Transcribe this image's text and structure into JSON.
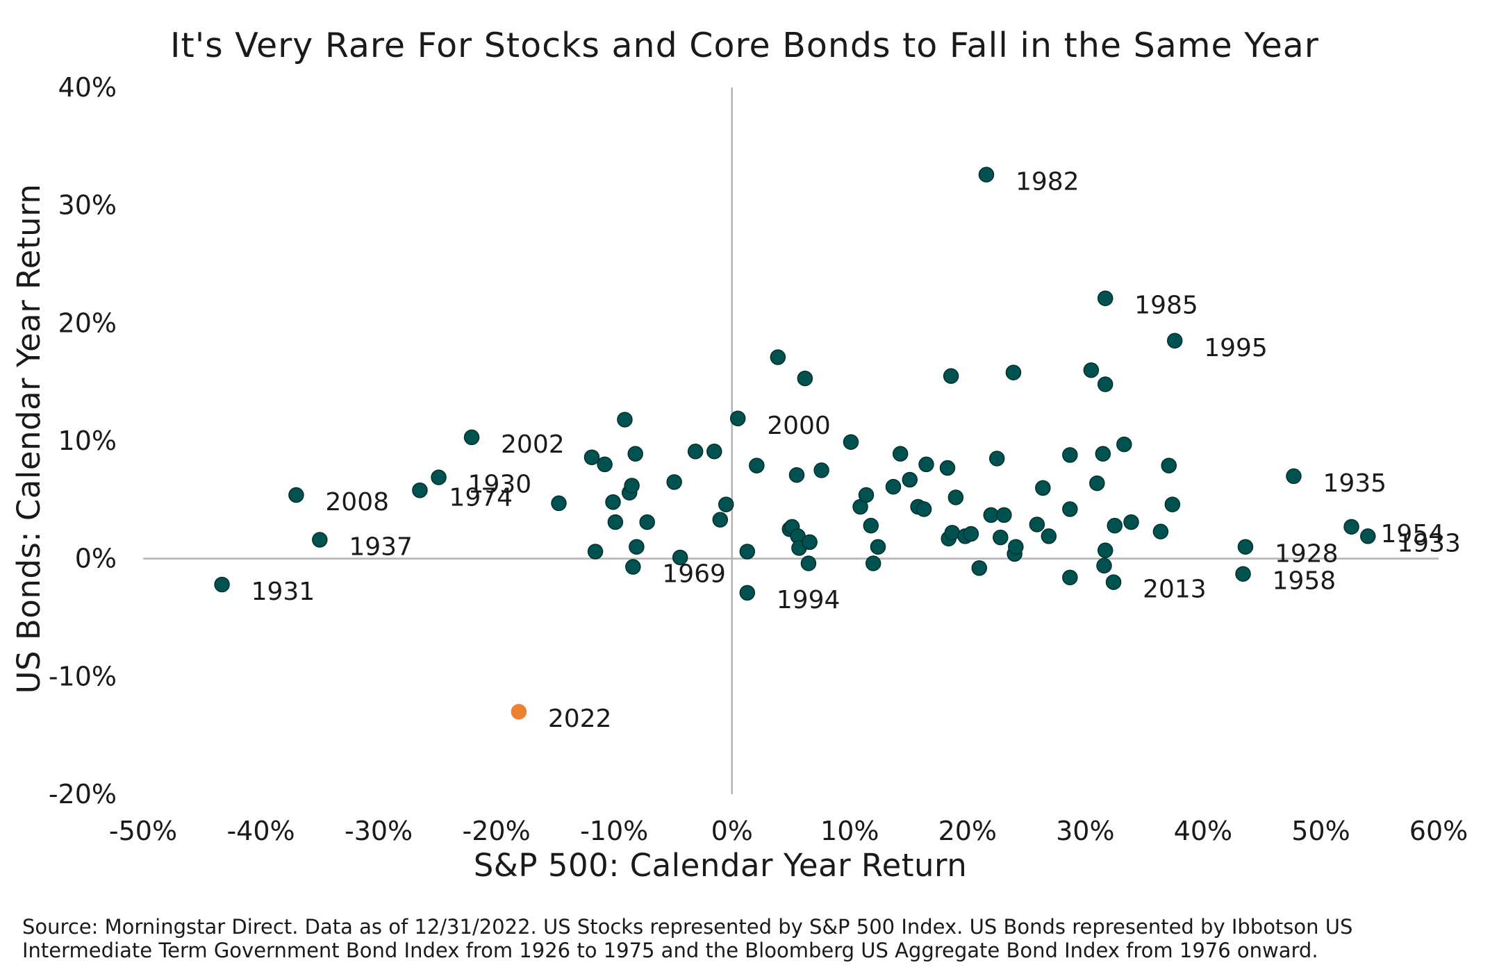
{
  "chart_data": {
    "type": "scatter",
    "title": "It's Very Rare For Stocks and Core Bonds to Fall in the Same Year",
    "xlabel": "S&P 500: Calendar Year Return",
    "ylabel": "US Bonds: Calendar Year Return",
    "xlim": [
      -50,
      60
    ],
    "ylim": [
      -20,
      40
    ],
    "x_ticks": [
      -50,
      -40,
      -30,
      -20,
      -10,
      0,
      10,
      20,
      30,
      40,
      50,
      60
    ],
    "y_ticks": [
      -20,
      -10,
      0,
      10,
      20,
      30,
      40
    ],
    "x_tick_labels": [
      "-50%",
      "-40%",
      "-30%",
      "-20%",
      "-10%",
      "0%",
      "10%",
      "20%",
      "30%",
      "40%",
      "50%",
      "60%"
    ],
    "y_tick_labels": [
      "-20%",
      "-10%",
      "0%",
      "10%",
      "20%",
      "30%",
      "40%"
    ],
    "grid": false,
    "zero_lines": true,
    "colors": {
      "default": "#005250",
      "highlight": "#ec8131",
      "zero_line": "#b3b3b3",
      "marker_edge": "#00302e"
    },
    "points": [
      {
        "x": -43.3,
        "y": -2.2,
        "label": "1931"
      },
      {
        "x": -37.0,
        "y": 5.4,
        "label": "2008"
      },
      {
        "x": -35.0,
        "y": 1.6,
        "label": "1937"
      },
      {
        "x": -26.5,
        "y": 5.8,
        "label": "1974"
      },
      {
        "x": -24.9,
        "y": 6.9,
        "label": "1930"
      },
      {
        "x": -22.1,
        "y": 10.3,
        "label": "2002"
      },
      {
        "x": -18.1,
        "y": -13.0,
        "label": "2022",
        "highlight": true
      },
      {
        "x": -14.7,
        "y": 4.7
      },
      {
        "x": -11.9,
        "y": 8.6
      },
      {
        "x": -11.6,
        "y": 0.6
      },
      {
        "x": -10.8,
        "y": 8.0
      },
      {
        "x": -10.1,
        "y": 4.8
      },
      {
        "x": -9.9,
        "y": 3.1
      },
      {
        "x": -9.1,
        "y": 11.8
      },
      {
        "x": -8.7,
        "y": 5.6
      },
      {
        "x": -8.5,
        "y": 6.2
      },
      {
        "x": -8.4,
        "y": -0.7,
        "label": "1969"
      },
      {
        "x": -8.2,
        "y": 8.9
      },
      {
        "x": -8.1,
        "y": 1.0
      },
      {
        "x": -7.2,
        "y": 3.1
      },
      {
        "x": -4.9,
        "y": 6.5
      },
      {
        "x": -4.4,
        "y": 0.1
      },
      {
        "x": -3.1,
        "y": 9.1
      },
      {
        "x": -1.5,
        "y": 9.1
      },
      {
        "x": -1.0,
        "y": 3.3
      },
      {
        "x": -0.5,
        "y": 4.6
      },
      {
        "x": 0.5,
        "y": 11.9,
        "label": "2000"
      },
      {
        "x": 1.3,
        "y": 0.6
      },
      {
        "x": 1.3,
        "y": -2.9,
        "label": "1994"
      },
      {
        "x": 2.1,
        "y": 7.9
      },
      {
        "x": 3.9,
        "y": 17.1
      },
      {
        "x": 4.9,
        "y": 2.5
      },
      {
        "x": 5.1,
        "y": 2.7
      },
      {
        "x": 5.5,
        "y": 7.1
      },
      {
        "x": 5.6,
        "y": 1.9
      },
      {
        "x": 5.7,
        "y": 0.9
      },
      {
        "x": 6.2,
        "y": 15.3
      },
      {
        "x": 6.5,
        "y": -0.4
      },
      {
        "x": 6.6,
        "y": 1.4
      },
      {
        "x": 7.6,
        "y": 7.5
      },
      {
        "x": 10.1,
        "y": 9.9
      },
      {
        "x": 10.9,
        "y": 4.4
      },
      {
        "x": 11.4,
        "y": 5.4
      },
      {
        "x": 11.8,
        "y": 2.8
      },
      {
        "x": 12.0,
        "y": -0.4
      },
      {
        "x": 12.4,
        "y": 1.0
      },
      {
        "x": 13.7,
        "y": 6.1
      },
      {
        "x": 14.3,
        "y": 8.9
      },
      {
        "x": 15.1,
        "y": 6.7
      },
      {
        "x": 15.8,
        "y": 4.4
      },
      {
        "x": 16.3,
        "y": 4.2
      },
      {
        "x": 16.5,
        "y": 8.0
      },
      {
        "x": 18.3,
        "y": 7.7
      },
      {
        "x": 18.4,
        "y": 1.7
      },
      {
        "x": 18.6,
        "y": 15.5
      },
      {
        "x": 18.7,
        "y": 2.2
      },
      {
        "x": 19.0,
        "y": 5.2
      },
      {
        "x": 19.8,
        "y": 1.9
      },
      {
        "x": 20.3,
        "y": 2.1
      },
      {
        "x": 21.0,
        "y": -0.8
      },
      {
        "x": 21.6,
        "y": 32.6,
        "label": "1982"
      },
      {
        "x": 22.0,
        "y": 3.7
      },
      {
        "x": 22.5,
        "y": 8.5
      },
      {
        "x": 22.8,
        "y": 1.8
      },
      {
        "x": 23.1,
        "y": 3.7
      },
      {
        "x": 23.9,
        "y": 15.8
      },
      {
        "x": 24.0,
        "y": 0.4
      },
      {
        "x": 24.1,
        "y": 1.0
      },
      {
        "x": 25.9,
        "y": 2.9
      },
      {
        "x": 26.4,
        "y": 6.0
      },
      {
        "x": 26.9,
        "y": 1.9
      },
      {
        "x": 28.7,
        "y": 8.8
      },
      {
        "x": 28.7,
        "y": 4.2
      },
      {
        "x": 28.7,
        "y": -1.6
      },
      {
        "x": 30.5,
        "y": 16.0
      },
      {
        "x": 31.0,
        "y": 6.4
      },
      {
        "x": 31.5,
        "y": 8.9
      },
      {
        "x": 31.6,
        "y": -0.6
      },
      {
        "x": 31.7,
        "y": 14.8
      },
      {
        "x": 31.7,
        "y": 0.7
      },
      {
        "x": 31.7,
        "y": 22.1,
        "label": "1985"
      },
      {
        "x": 32.4,
        "y": -2.0,
        "label": "2013"
      },
      {
        "x": 32.5,
        "y": 2.8
      },
      {
        "x": 33.3,
        "y": 9.7
      },
      {
        "x": 33.9,
        "y": 3.1
      },
      {
        "x": 36.4,
        "y": 2.3
      },
      {
        "x": 37.1,
        "y": 7.9
      },
      {
        "x": 37.4,
        "y": 4.6
      },
      {
        "x": 37.6,
        "y": 18.5,
        "label": "1995"
      },
      {
        "x": 43.4,
        "y": -1.3,
        "label": "1958"
      },
      {
        "x": 43.6,
        "y": 1.0,
        "label": "1928"
      },
      {
        "x": 47.7,
        "y": 7.0,
        "label": "1935"
      },
      {
        "x": 52.6,
        "y": 2.7,
        "label": "1954"
      },
      {
        "x": 54.0,
        "y": 1.9,
        "label": "1933"
      }
    ]
  },
  "source_note": "Source: Morningstar Direct. Data as of 12/31/2022. US Stocks represented by S&P 500 Index. US Bonds represented by Ibbotson US Intermediate Term Government Bond Index from 1926 to 1975 and the Bloomberg US Aggregate Bond Index from 1976 onward."
}
